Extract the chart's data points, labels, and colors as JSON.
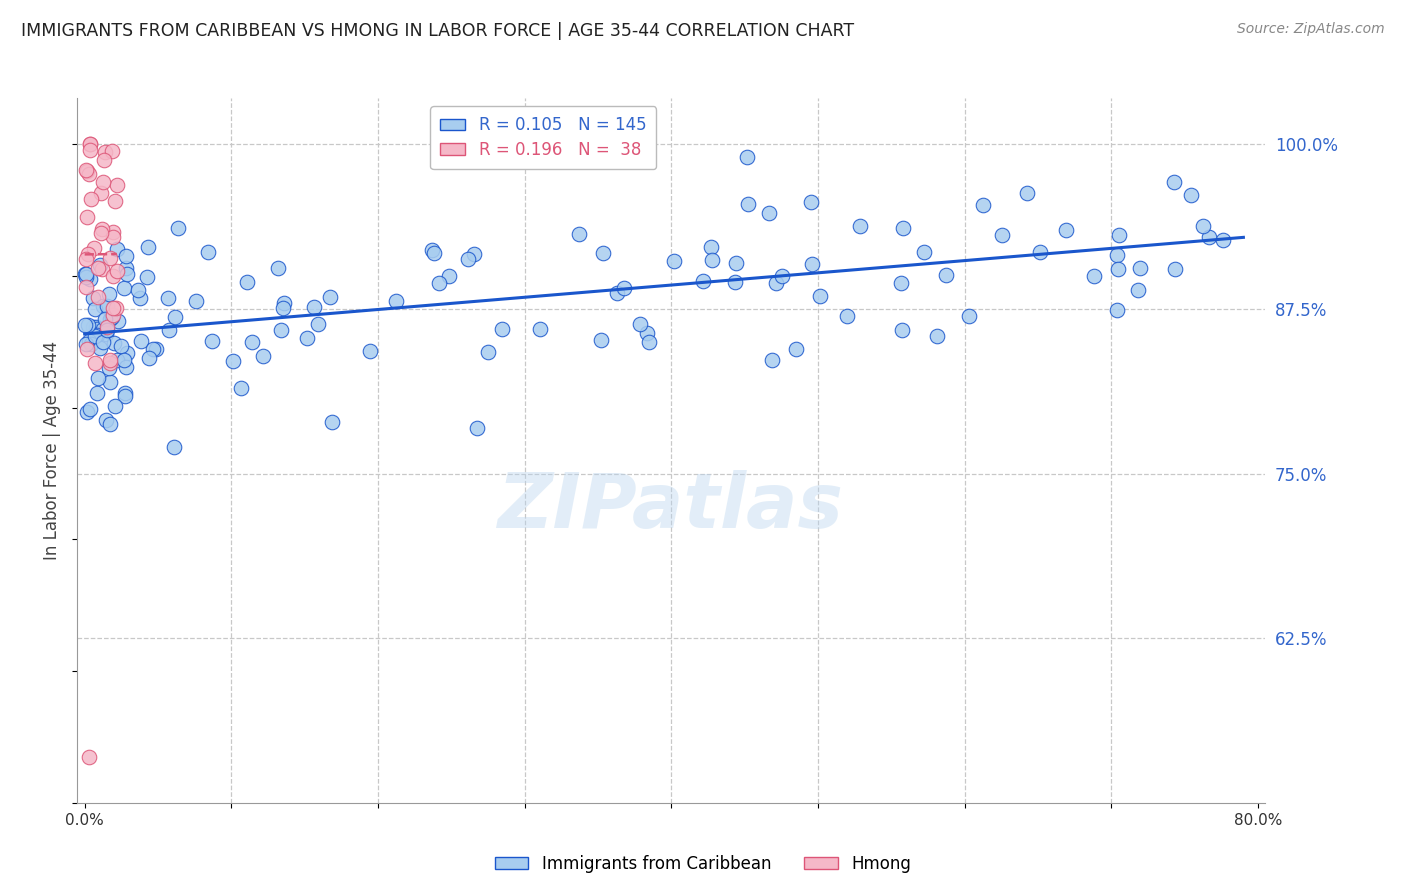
{
  "title": "IMMIGRANTS FROM CARIBBEAN VS HMONG IN LABOR FORCE | AGE 35-44 CORRELATION CHART",
  "source": "Source: ZipAtlas.com",
  "ylabel": "In Labor Force | Age 35-44",
  "xlim": [
    -0.005,
    0.805
  ],
  "ylim": [
    0.5,
    1.035
  ],
  "xtick_positions": [
    0.0,
    0.1,
    0.2,
    0.3,
    0.4,
    0.5,
    0.6,
    0.7,
    0.8
  ],
  "xticklabels": [
    "0.0%",
    "",
    "",
    "",
    "",
    "",
    "",
    "",
    "80.0%"
  ],
  "yticks_right": [
    1.0,
    0.875,
    0.75,
    0.625
  ],
  "yticklabels_right": [
    "100.0%",
    "87.5%",
    "75.0%",
    "62.5%"
  ],
  "caribbean_R": 0.105,
  "caribbean_N": 145,
  "hmong_R": 0.196,
  "hmong_N": 38,
  "caribbean_color": "#A8CDEF",
  "hmong_color": "#F5B8C8",
  "trend_caribbean_color": "#1A56CC",
  "trend_hmong_color": "#DD5577",
  "background_color": "#FFFFFF",
  "grid_color": "#C8C8C8",
  "title_color": "#222222",
  "axis_label_color": "#444444",
  "right_tick_color": "#3366CC",
  "watermark": "ZIPatlas",
  "legend_label1": "Immigrants from Caribbean",
  "legend_label2": "Hmong"
}
